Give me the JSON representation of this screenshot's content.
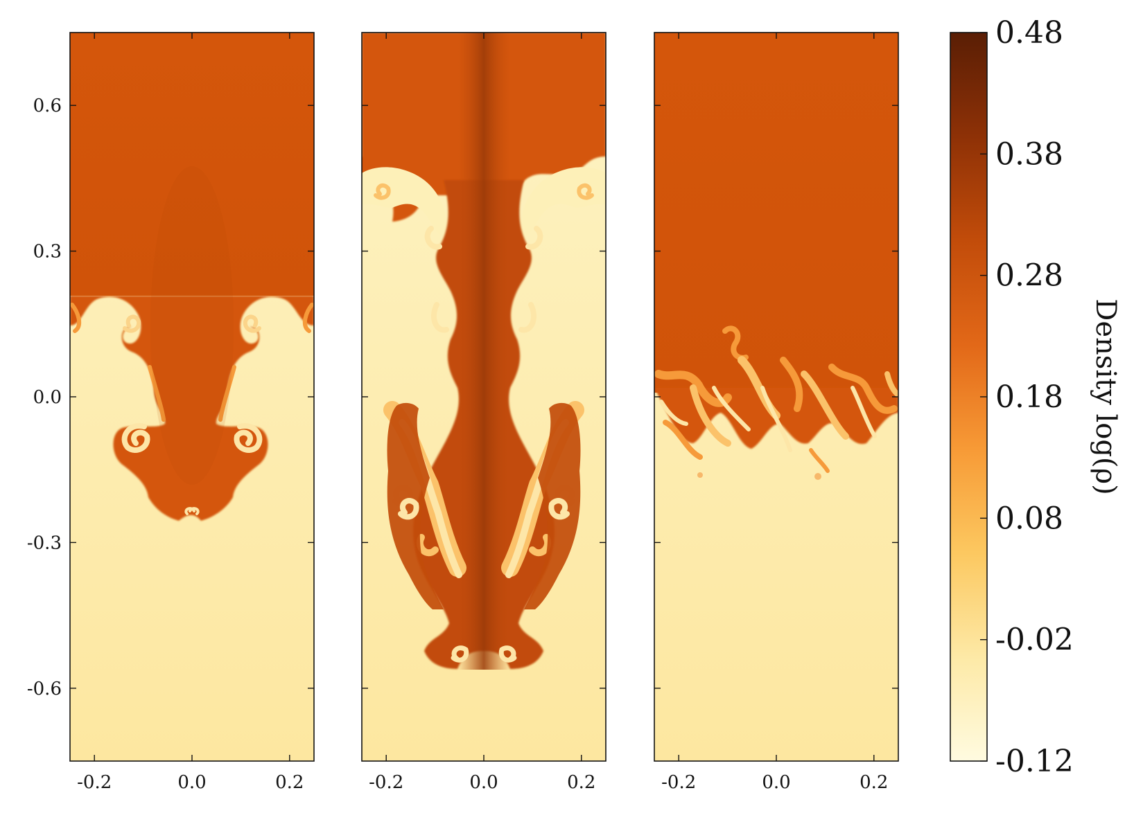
{
  "chart_data": {
    "type": "heatmap",
    "description_panels": 3,
    "x_ticks": [
      "-0.2",
      "0.0",
      "0.2"
    ],
    "x_tick_values": [
      -0.2,
      0.0,
      0.2
    ],
    "xlim": [
      -0.25,
      0.25
    ],
    "y_ticks": [
      "0.6",
      "0.3",
      "0.0",
      "-0.3",
      "-0.6"
    ],
    "y_tick_values": [
      0.6,
      0.3,
      0.0,
      -0.3,
      -0.6
    ],
    "ylim": [
      -0.75,
      0.75
    ],
    "colorbar": {
      "label": "Density log(ρ)",
      "ticks": [
        "0.48",
        "0.38",
        "0.28",
        "0.18",
        "0.08",
        "-0.02",
        "-0.12"
      ],
      "tick_values": [
        0.48,
        0.38,
        0.28,
        0.18,
        0.08,
        -0.02,
        -0.12
      ],
      "range": [
        -0.12,
        0.48
      ],
      "colormap": [
        "#fffbe0",
        "#fde9a6",
        "#fcc860",
        "#f79a36",
        "#e26818",
        "#c24c0a",
        "#8e3106",
        "#5a1e05"
      ]
    },
    "heavy_fluid_log_density": 0.33,
    "light_fluid_log_density": -0.05,
    "panels": [
      {
        "name": "panel-1",
        "x_ticks_shown": true,
        "y_ticks_shown": true
      },
      {
        "name": "panel-2",
        "x_ticks_shown": true,
        "y_ticks_shown": false
      },
      {
        "name": "panel-3",
        "x_ticks_shown": true,
        "y_ticks_shown": false
      }
    ]
  },
  "colors": {
    "heavy": "#d4560b",
    "heavy_dark": "#a9420a",
    "light": "#fdf0b8",
    "light_bottom": "#fde7a0",
    "mix": "#f69a3a",
    "mix_light": "#fbc26a",
    "axis": "#111111"
  }
}
